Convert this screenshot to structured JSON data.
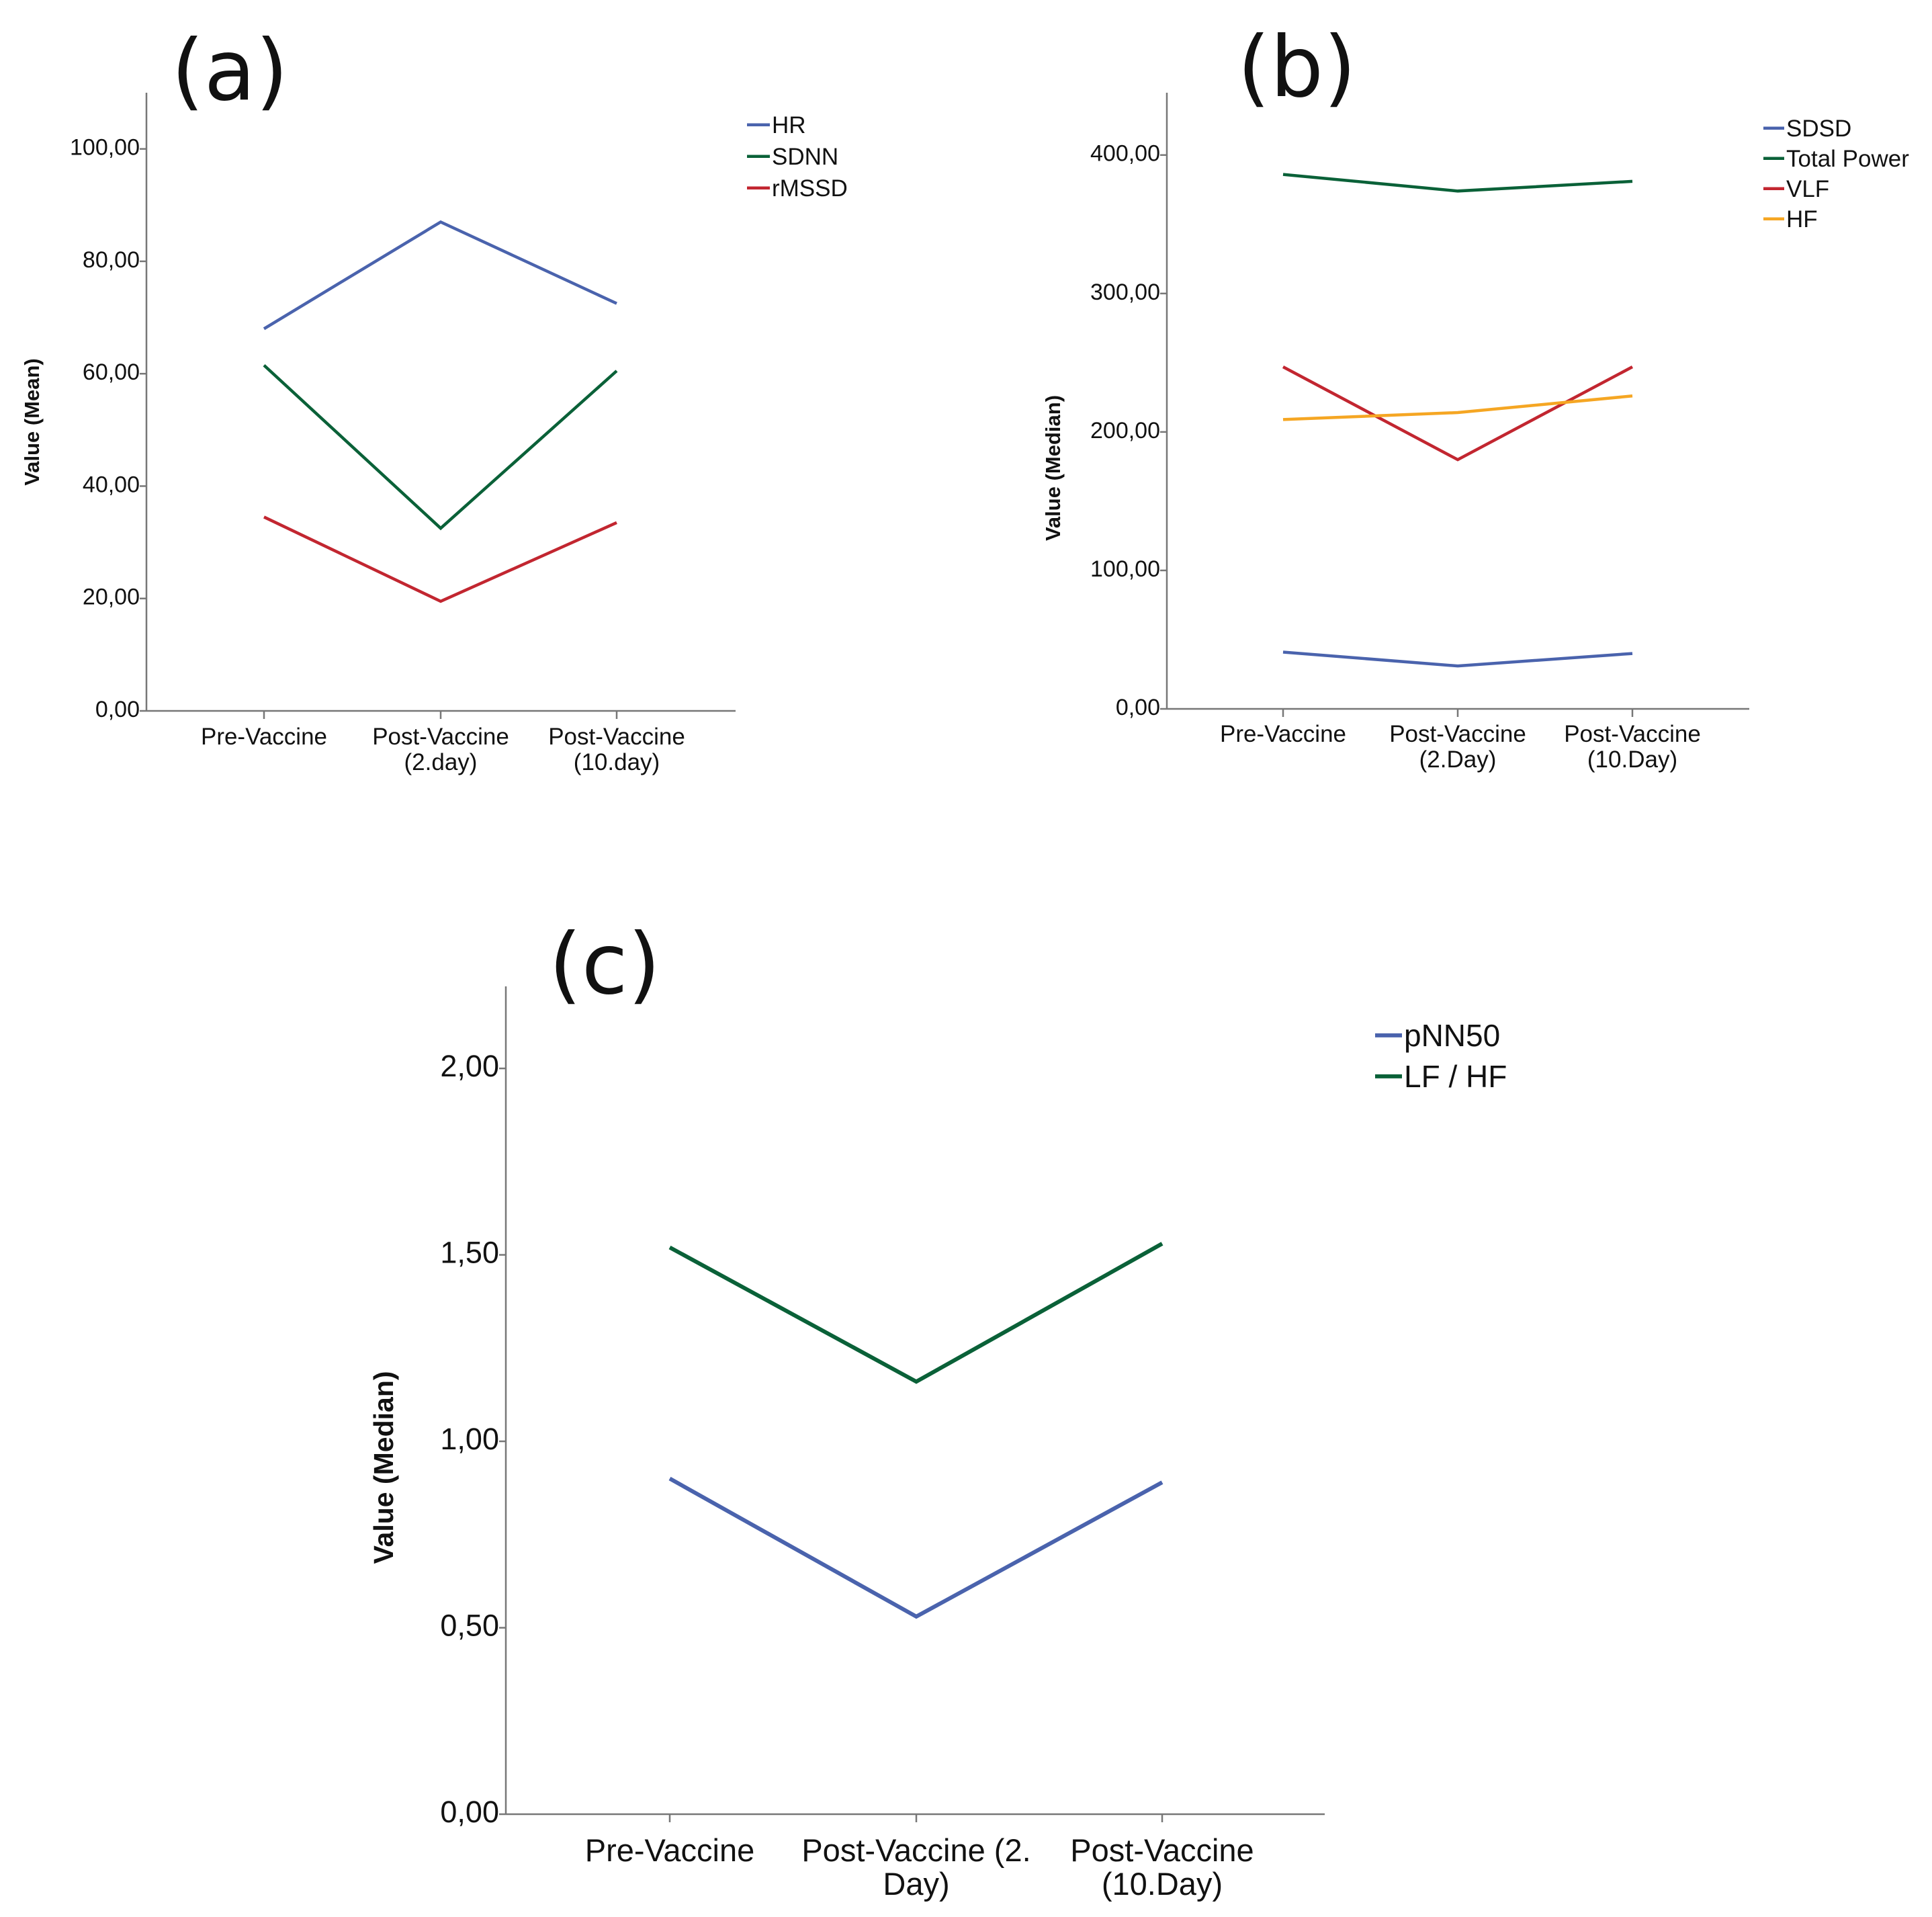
{
  "chart_data": [
    {
      "id": "a",
      "panel_label": "(a)",
      "type": "line",
      "ylabel": "Value (Mean)",
      "ylim": [
        0,
        110
      ],
      "yticks": [
        0,
        20,
        40,
        60,
        80,
        100
      ],
      "ytick_labels": [
        "0,00",
        "20,00",
        "40,00",
        "60,00",
        "80,00",
        "100,00"
      ],
      "categories": [
        [
          "Pre-Vaccine"
        ],
        [
          "Post-Vaccine",
          "(2.day)"
        ],
        [
          "Post-Vaccine",
          "(10.day)"
        ]
      ],
      "legend": "top-right",
      "series": [
        {
          "name": "HR",
          "color": "#4a63ad",
          "values": [
            68,
            87,
            72.5
          ]
        },
        {
          "name": "SDNN",
          "color": "#0a6138",
          "values": [
            61.5,
            32.5,
            60.5
          ]
        },
        {
          "name": "rMSSD",
          "color": "#c22630",
          "values": [
            34.5,
            19.5,
            33.5
          ]
        }
      ]
    },
    {
      "id": "b",
      "panel_label": "(b)",
      "type": "line",
      "ylabel": "Value (Median)",
      "ylim": [
        0,
        445
      ],
      "yticks": [
        0,
        100,
        200,
        300,
        400
      ],
      "ytick_labels": [
        "0,00",
        "100,00",
        "200,00",
        "300,00",
        "400,00"
      ],
      "categories": [
        [
          "Pre-Vaccine"
        ],
        [
          "Post-Vaccine",
          "(2.Day)"
        ],
        [
          "Post-Vaccine",
          "(10.Day)"
        ]
      ],
      "legend": "top-right",
      "series": [
        {
          "name": "SDSD",
          "color": "#4a63ad",
          "values": [
            41,
            31,
            40
          ]
        },
        {
          "name": "Total Power",
          "color": "#0a6138",
          "values": [
            386,
            374,
            381
          ]
        },
        {
          "name": "VLF",
          "color": "#c22630",
          "values": [
            247,
            180,
            247
          ]
        },
        {
          "name": "HF",
          "color": "#f5a623",
          "values": [
            209,
            214,
            226
          ]
        }
      ]
    },
    {
      "id": "c",
      "panel_label": "(c)",
      "type": "line",
      "ylabel": "Value (Median)",
      "ylim": [
        0,
        2.22
      ],
      "yticks": [
        0,
        0.5,
        1,
        1.5,
        2
      ],
      "ytick_labels": [
        "0,00",
        "0,50",
        "1,00",
        "1,50",
        "2,00"
      ],
      "categories": [
        [
          "Pre-Vaccine"
        ],
        [
          "Post-Vaccine (2.",
          "Day)"
        ],
        [
          "Post-Vaccine",
          "(10.Day)"
        ]
      ],
      "legend": "top-right",
      "series": [
        {
          "name": "pNN50",
          "color": "#4a63ad",
          "values": [
            0.9,
            0.53,
            0.89
          ]
        },
        {
          "name": "LF / HF",
          "color": "#0a6138",
          "values": [
            1.52,
            1.16,
            1.53
          ]
        }
      ]
    }
  ]
}
